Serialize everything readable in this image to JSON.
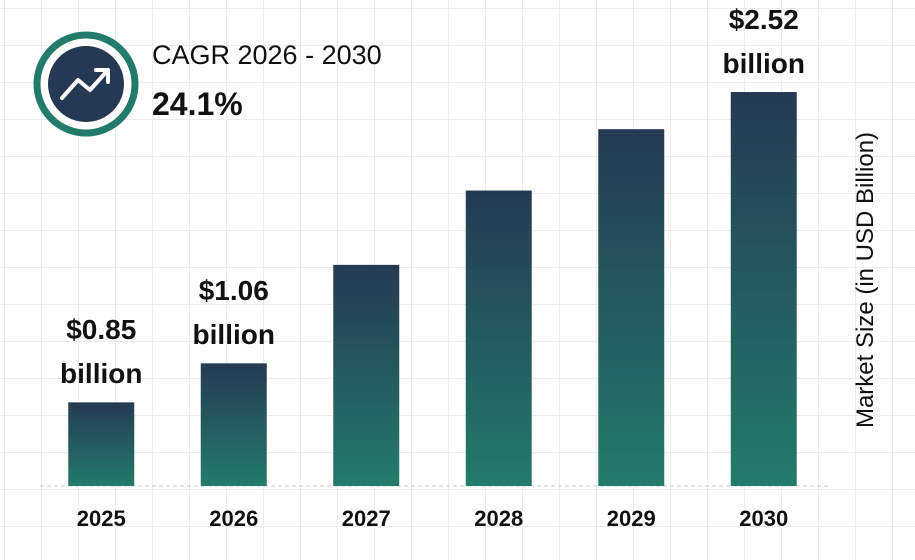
{
  "chart_data": {
    "type": "bar",
    "categories": [
      "2025",
      "2026",
      "2027",
      "2028",
      "2029",
      "2030"
    ],
    "values": [
      0.85,
      1.06,
      1.59,
      1.99,
      2.32,
      2.52
    ],
    "value_labels": [
      "$0.85 billion",
      "$1.06 billion",
      null,
      null,
      null,
      "$2.52 billion"
    ],
    "ylim": [
      0.4,
      2.8
    ],
    "y_axis_label": "Market Size (in USD Billion)",
    "annotation": {
      "label": "CAGR 2026 - 2030",
      "value": "24.1%"
    },
    "color_top": "#253a52",
    "color_bottom": "#237b6b"
  }
}
